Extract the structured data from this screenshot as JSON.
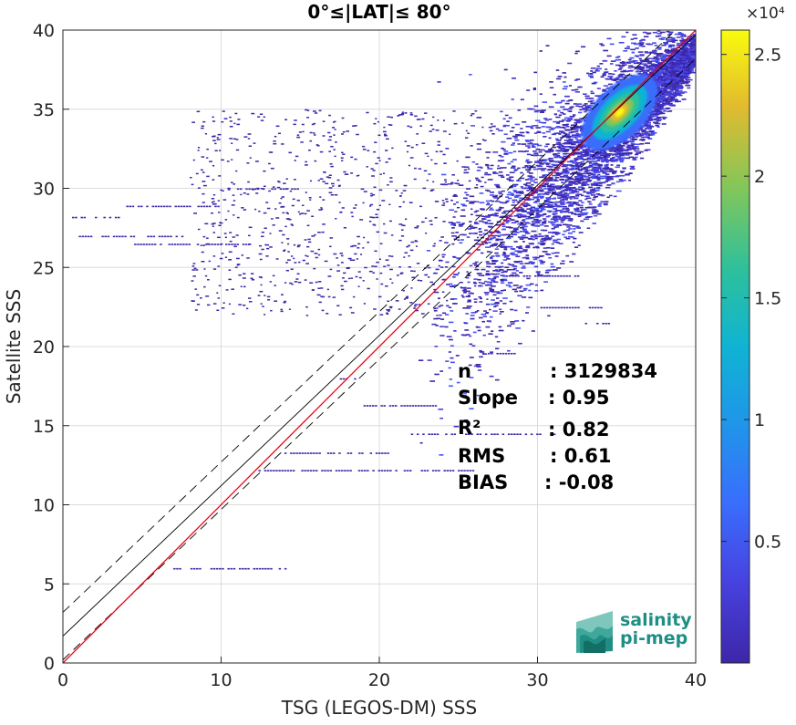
{
  "chart_data": {
    "type": "heatmap",
    "title": "0°≤|LAT|≤ 80°",
    "xlabel": "TSG (LEGOS-DM) SSS",
    "ylabel": "Satellite SSS",
    "xlim": [
      0,
      40
    ],
    "ylim": [
      0,
      40
    ],
    "xticks": [
      0,
      10,
      20,
      30,
      40
    ],
    "yticks": [
      0,
      5,
      10,
      15,
      20,
      25,
      30,
      35,
      40
    ],
    "grid": true,
    "colorbar": {
      "multiplier": "×10⁴",
      "min": 0,
      "max": 26000,
      "ticks": [
        5000,
        10000,
        15000,
        20000,
        25000
      ],
      "tick_labels": [
        "0.5",
        "1",
        "1.5",
        "2",
        "2.5"
      ]
    },
    "reference_lines": {
      "identity": {
        "slope": 1,
        "intercept": 0,
        "color": "#e8000b"
      },
      "regression": {
        "slope": 0.95,
        "intercept": 1.7,
        "color": "#000000"
      },
      "regression_band_offset": 1.5
    },
    "density_core": {
      "x": 35.2,
      "y": 34.8
    },
    "stats": [
      {
        "label": "n",
        "value": ": 3129834"
      },
      {
        "label": "Slope",
        "value": ": 0.95"
      },
      {
        "label": "R²",
        "value": ": 0.82"
      },
      {
        "label": "RMS",
        "value": ": 0.61"
      },
      {
        "label": "BIAS",
        "value": ": -0.08"
      }
    ],
    "horizontal_streaks": [
      {
        "y": 28.2,
        "x0": 0.4,
        "x1": 3.5
      },
      {
        "y": 27.0,
        "x0": 1.0,
        "x1": 8.0
      },
      {
        "y": 26.5,
        "x0": 4.5,
        "x1": 12.0
      },
      {
        "y": 30.0,
        "x0": 11.0,
        "x1": 15.0
      },
      {
        "y": 28.9,
        "x0": 4.0,
        "x1": 10.0
      },
      {
        "y": 12.2,
        "x0": 12.0,
        "x1": 26.0
      },
      {
        "y": 13.3,
        "x0": 14.0,
        "x1": 21.0
      },
      {
        "y": 16.3,
        "x0": 19.0,
        "x1": 23.5
      },
      {
        "y": 14.5,
        "x0": 22.0,
        "x1": 31.0
      },
      {
        "y": 6.0,
        "x0": 6.8,
        "x1": 14.0
      },
      {
        "y": 24.5,
        "x0": 28.0,
        "x1": 33.0
      },
      {
        "y": 22.5,
        "x0": 30.0,
        "x1": 34.0
      },
      {
        "y": 21.5,
        "x0": 33.0,
        "x1": 34.5
      },
      {
        "y": 19.6,
        "x0": 26.5,
        "x1": 28.5
      },
      {
        "y": 18.0,
        "x0": 17.5,
        "x1": 18.5
      }
    ]
  },
  "logo": {
    "text_line1": "salinity",
    "text_line2": "pi-mep",
    "color": "#1f8f85"
  },
  "colors": {
    "axis": "#262626",
    "grid": "#dcdcdc",
    "low": "#3e26a8",
    "high": "#f9fb0e"
  }
}
